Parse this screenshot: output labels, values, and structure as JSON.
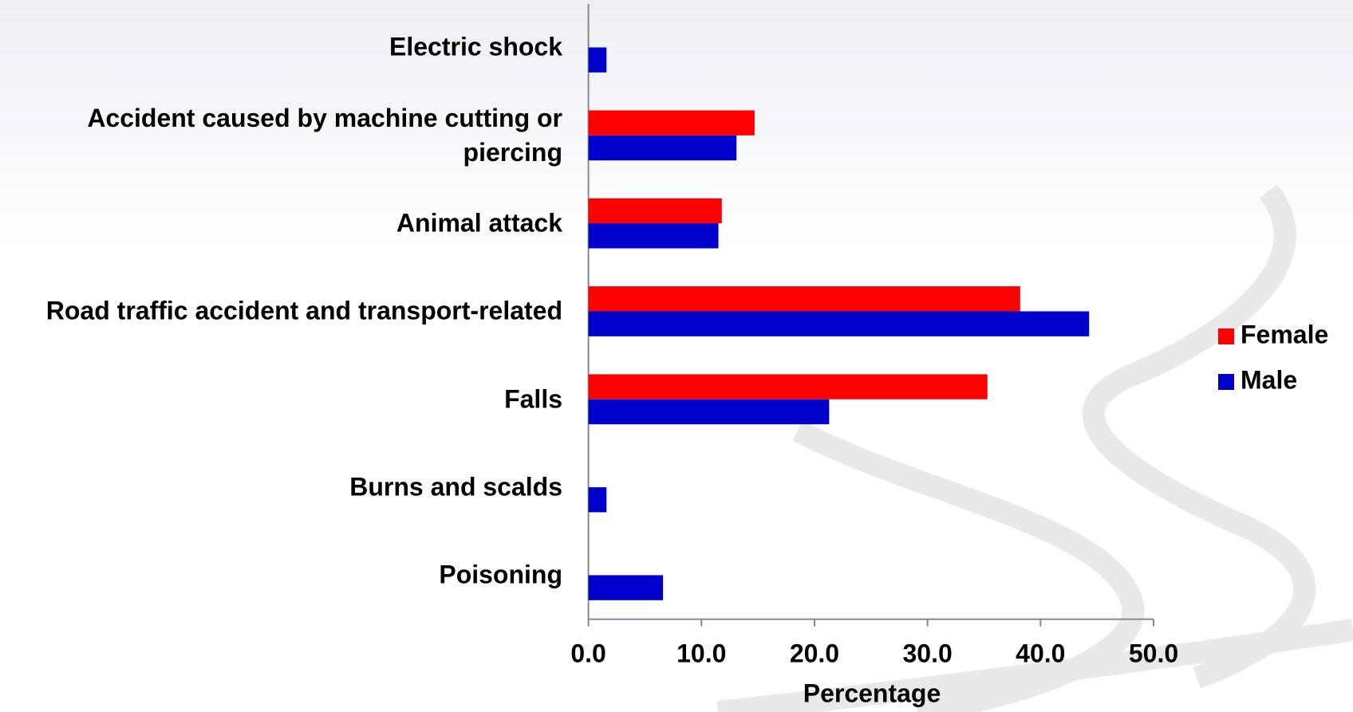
{
  "chart_data": {
    "type": "bar",
    "orientation": "horizontal",
    "x_label": "Percentage",
    "categories": [
      "Electric shock",
      "Accident caused by machine cutting or piercing",
      "Animal attack",
      "Road traffic accident and transport-related",
      "Falls",
      "Burns and scalds",
      "Poisoning"
    ],
    "series": [
      {
        "name": "Female",
        "color": "#ff0000",
        "values": [
          null,
          14.7,
          11.8,
          38.2,
          35.3,
          null,
          null
        ]
      },
      {
        "name": "Male",
        "color": "#0000cc",
        "values": [
          1.6,
          13.1,
          11.5,
          44.3,
          21.3,
          1.6,
          6.6
        ]
      }
    ],
    "xlim": [
      0,
      50
    ],
    "xticks": [
      {
        "value": 0,
        "label": "0.0"
      },
      {
        "value": 10,
        "label": "10.0"
      },
      {
        "value": 20,
        "label": "20.0"
      },
      {
        "value": 30,
        "label": "30.0"
      },
      {
        "value": 40,
        "label": "40.0"
      },
      {
        "value": 50,
        "label": "50.0"
      }
    ],
    "grid": false,
    "legend_position": "right"
  }
}
